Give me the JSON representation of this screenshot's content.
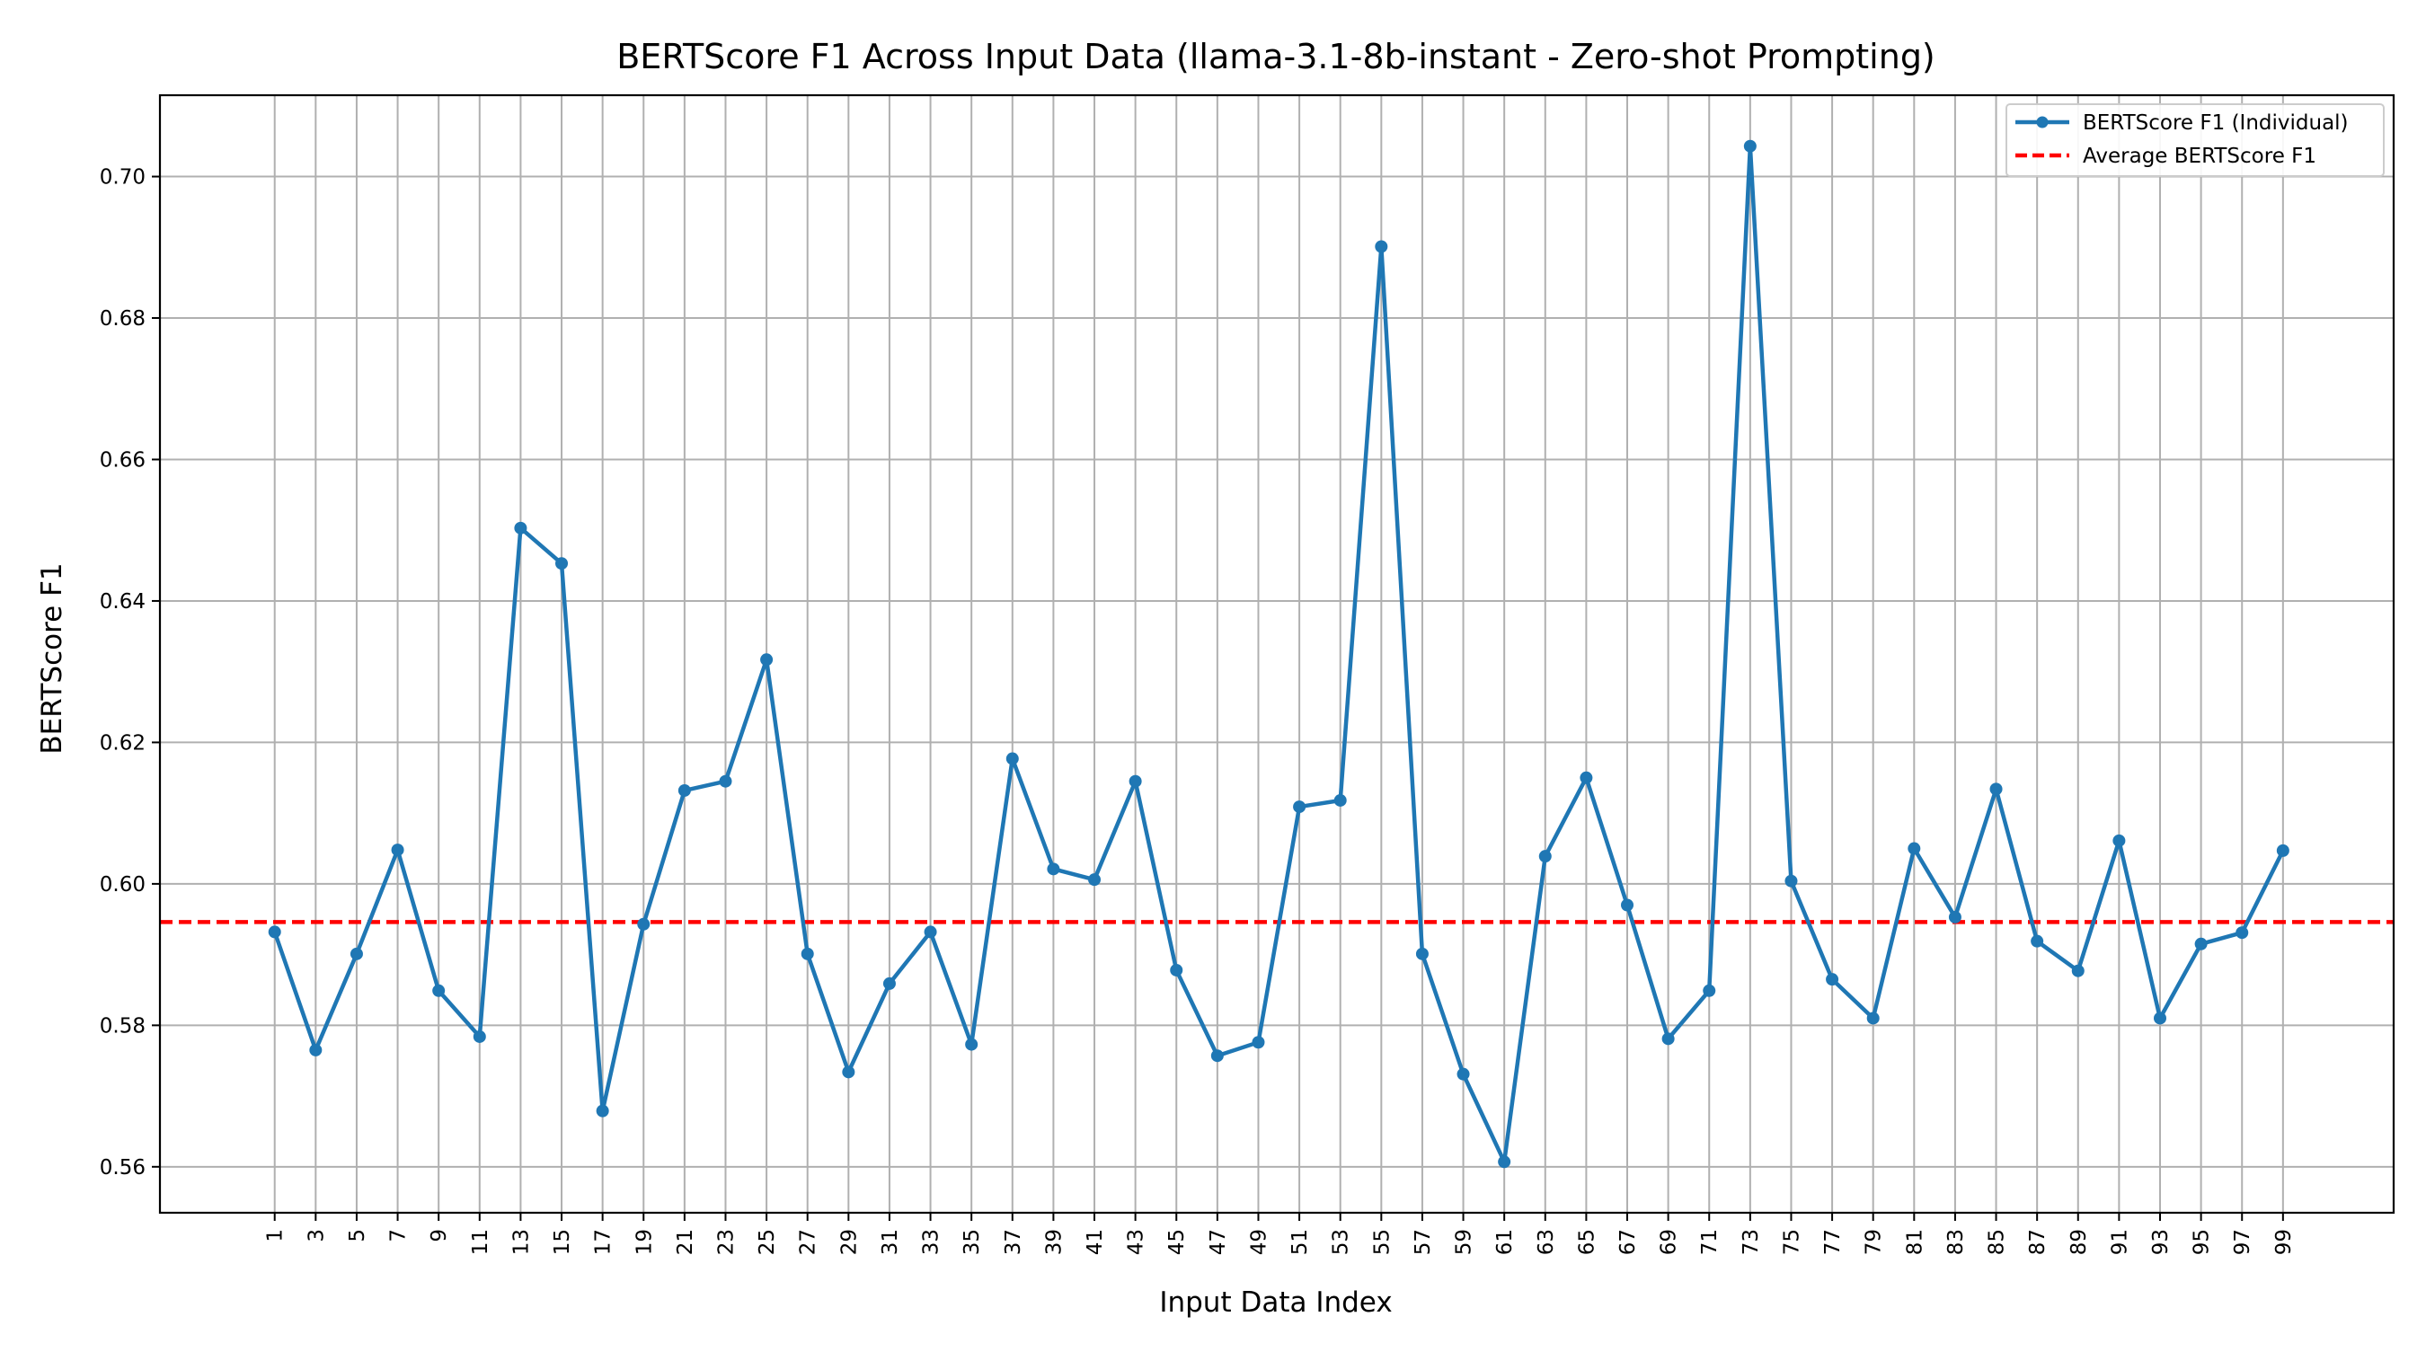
{
  "chart_data": {
    "type": "line",
    "title": "BERTScore F1 Across Input Data (llama-3.1-8b-instant - Zero-shot Prompting)",
    "xlabel": "Input Data Index",
    "ylabel": "BERTScore F1",
    "x": [
      1,
      3,
      5,
      7,
      9,
      11,
      13,
      15,
      17,
      19,
      21,
      23,
      25,
      27,
      29,
      31,
      33,
      35,
      37,
      39,
      41,
      43,
      45,
      47,
      49,
      51,
      53,
      55,
      57,
      59,
      61,
      63,
      65,
      67,
      69,
      71,
      73,
      75,
      77,
      79,
      81,
      83,
      85,
      87,
      89,
      91,
      93,
      95,
      97,
      99
    ],
    "x_tick_labels": [
      "1",
      "3",
      "5",
      "7",
      "9",
      "11",
      "13",
      "15",
      "17",
      "19",
      "21",
      "23",
      "25",
      "27",
      "29",
      "31",
      "33",
      "35",
      "37",
      "39",
      "41",
      "43",
      "45",
      "47",
      "49",
      "51",
      "53",
      "55",
      "57",
      "59",
      "61",
      "63",
      "65",
      "67",
      "69",
      "71",
      "73",
      "75",
      "77",
      "79",
      "81",
      "83",
      "85",
      "87",
      "89",
      "91",
      "93",
      "95",
      "97",
      "99"
    ],
    "xlim": [
      -4.6,
      104.4
    ],
    "ylim": [
      0.5535,
      0.7115
    ],
    "y_ticks": [
      0.56,
      0.58,
      0.6,
      0.62,
      0.64,
      0.66,
      0.68,
      0.7
    ],
    "y_tick_labels": [
      "0.56",
      "0.58",
      "0.60",
      "0.62",
      "0.64",
      "0.66",
      "0.68",
      "0.70"
    ],
    "grid": true,
    "legend_position": "top-right",
    "series": [
      {
        "name": "BERTScore F1 (Individual)",
        "color": "#1f77b4",
        "style": "solid-with-markers",
        "values": [
          0.5932,
          0.5765,
          0.5901,
          0.6048,
          0.5849,
          0.5784,
          0.6503,
          0.6453,
          0.5679,
          0.5943,
          0.6132,
          0.6145,
          0.6317,
          0.5901,
          0.5734,
          0.5859,
          0.5932,
          0.5773,
          0.6177,
          0.6021,
          0.6006,
          0.6145,
          0.5878,
          0.5757,
          0.5776,
          0.6109,
          0.6118,
          0.6901,
          0.5901,
          0.5731,
          0.5607,
          0.6039,
          0.615,
          0.597,
          0.5781,
          0.5849,
          0.7043,
          0.6004,
          0.5865,
          0.581,
          0.605,
          0.5953,
          0.6134,
          0.5919,
          0.5877,
          0.6061,
          0.581,
          0.5915,
          0.5931,
          0.6047
        ]
      },
      {
        "name": "Average BERTScore F1",
        "color": "#ff0000",
        "style": "dashed",
        "value": 0.5946
      }
    ]
  }
}
